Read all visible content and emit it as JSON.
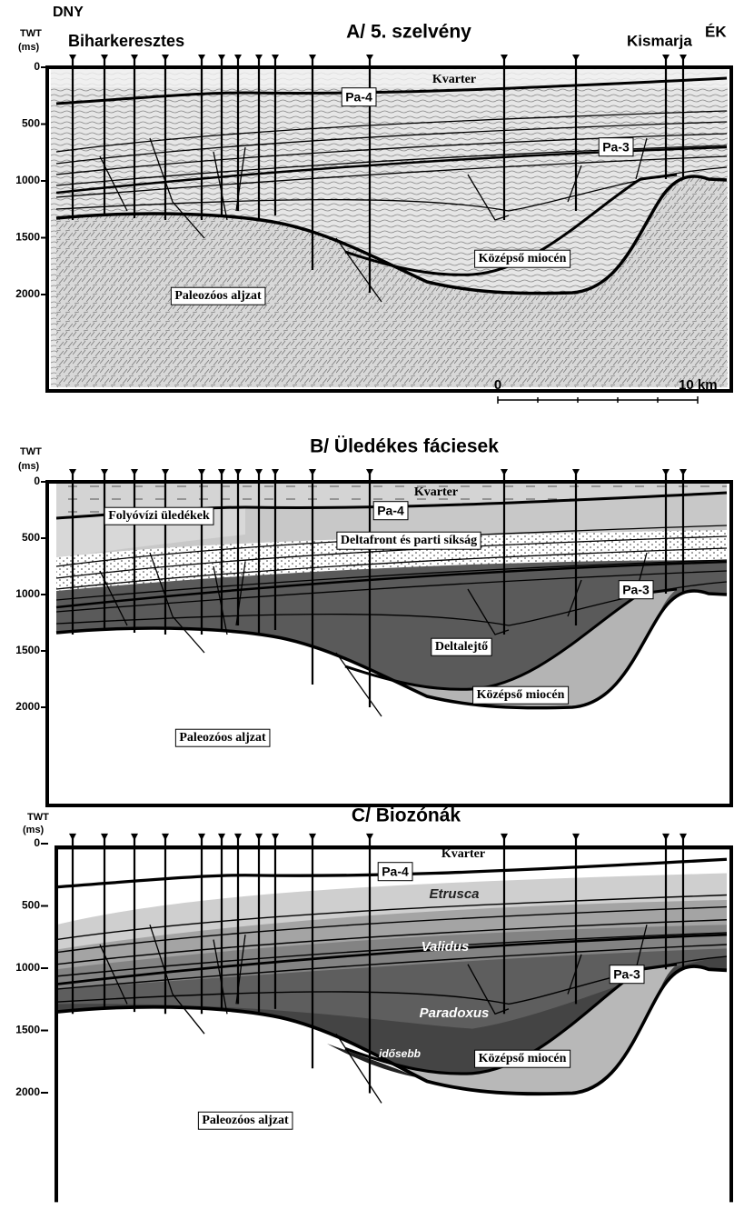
{
  "panel_a": {
    "side_left": "DNY",
    "side_right": "ÉK",
    "axis_title": "TWT",
    "axis_unit": "(ms)",
    "yticks": [
      "0",
      "500",
      "1000",
      "1500",
      "2000"
    ],
    "title": "A/ 5. szelvény",
    "place_left": "Biharkeresztes",
    "place_right": "Kismarja",
    "labels": {
      "kvarter": "Kvarter",
      "pa4": "Pa-4",
      "pa3": "Pa-3",
      "kozepso": "Középső miocén",
      "paleozoos": "Paleozóos aljzat"
    },
    "scale_bar": {
      "start": "0",
      "end": "10 km"
    }
  },
  "panel_b": {
    "axis_title": "TWT",
    "axis_unit": "(ms)",
    "yticks": [
      "0",
      "500",
      "1000",
      "1500",
      "2000"
    ],
    "title": "B/ Üledékes fáciesek",
    "labels": {
      "kvarter": "Kvarter",
      "pa4": "Pa-4",
      "folyovizi": "Folyóvízi üledékek",
      "deltafront": "Deltafront és parti síkság",
      "pa3": "Pa-3",
      "deltalejto": "Deltalejtő",
      "kozepso": "Középső miocén",
      "paleozoos": "Paleozóos aljzat"
    }
  },
  "panel_c": {
    "axis_title": "TWT",
    "axis_unit": "(ms)",
    "yticks": [
      "0",
      "500",
      "1000",
      "1500",
      "2000"
    ],
    "title": "C/ Biozónák",
    "labels": {
      "kvarter": "Kvarter",
      "pa4": "Pa-4",
      "etrusca": "Etrusca",
      "validus": "Validus",
      "pa3": "Pa-3",
      "paradoxus": "Paradoxus",
      "idosebb": "idősebb",
      "kozepso": "Középső miocén",
      "paleozoos": "Paleozóos aljzat"
    }
  }
}
